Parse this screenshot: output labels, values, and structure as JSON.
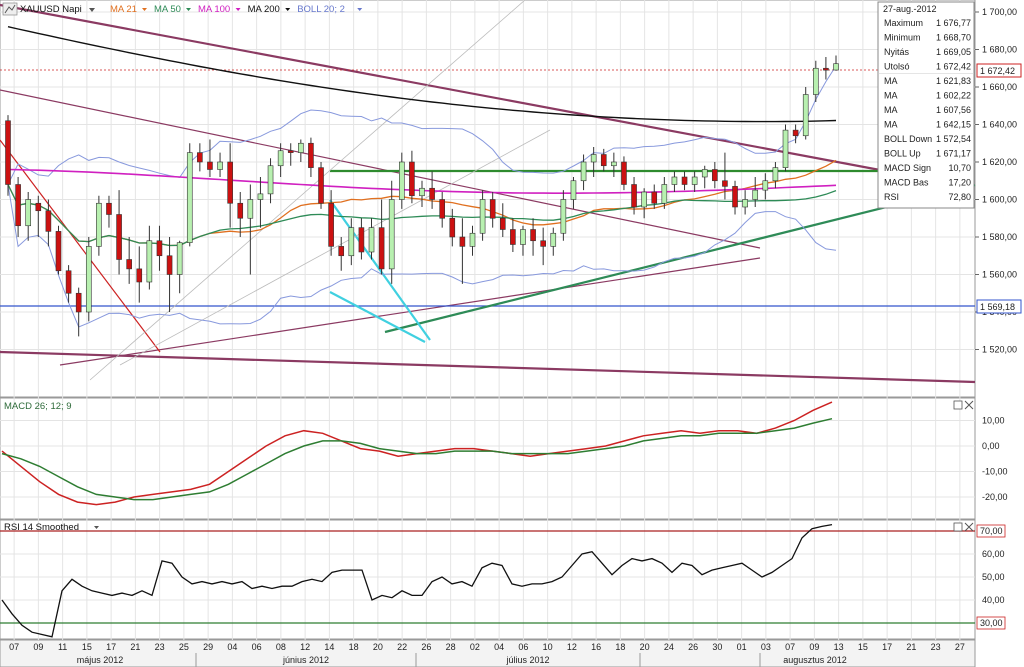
{
  "header": {
    "symbol": "XAUUSD Napi",
    "indicators": [
      {
        "label": "MA 21",
        "color": "#e07020"
      },
      {
        "label": "MA 50",
        "color": "#2e8b57"
      },
      {
        "label": "MA 100",
        "color": "#d020c0"
      },
      {
        "label": "MA 200",
        "color": "#111111"
      },
      {
        "label": "BOLL 20; 2",
        "color": "#6677cc"
      }
    ]
  },
  "info_panel": {
    "date": "27-aug.-2012",
    "rows": [
      {
        "label": "Maximum",
        "value": "1 676,77",
        "color": "#111111"
      },
      {
        "label": "Minimum",
        "value": "1 668,70",
        "color": "#111111"
      },
      {
        "label": "Nyitás",
        "value": "1 669,05",
        "color": "#111111"
      },
      {
        "label": "Utolsó",
        "value": "1 672,42",
        "color": "#cc2222"
      },
      {
        "label": "MA",
        "value": "1 621,83",
        "color": "#e07020"
      },
      {
        "label": "MA",
        "value": "1 602,22",
        "color": "#2e8b57"
      },
      {
        "label": "MA",
        "value": "1 607,56",
        "color": "#d020c0"
      },
      {
        "label": "MA",
        "value": "1 642,15",
        "color": "#111111"
      },
      {
        "label": "BOLL Down",
        "value": "1 572,54",
        "color": "#4466cc"
      },
      {
        "label": "BOLL Up",
        "value": "1 671,17",
        "color": "#4466cc"
      },
      {
        "label": "MACD Sign",
        "value": "10,70",
        "color": "#2e8b57"
      },
      {
        "label": "MACD Bas",
        "value": "17,20",
        "color": "#cc2222"
      },
      {
        "label": "RSI",
        "value": "72,80",
        "color": "#111111"
      }
    ]
  },
  "price_labels": {
    "last": "1 672,42",
    "support": "1 569,18"
  },
  "macd_label": "MACD 26; 12; 9",
  "rsi_label": "RSI 14 Smoothed",
  "chart_data": [
    {
      "type": "candlestick",
      "title": "XAUUSD Napi",
      "ylim": [
        1513,
        1705
      ],
      "y_ticks": [
        "1 700,00",
        "1 680,00",
        "1 660,00",
        "1 640,00",
        "1 620,00",
        "1 600,00",
        "1 580,00",
        "1 560,00",
        "1 540,00",
        "1 520,00"
      ],
      "y_tick_values": [
        1700,
        1680,
        1660,
        1640,
        1620,
        1600,
        1580,
        1560,
        1540,
        1520
      ],
      "x_ticks": [
        "07",
        "09",
        "11",
        "15",
        "17",
        "21",
        "23",
        "25",
        "29",
        "04",
        "06",
        "08",
        "12",
        "14",
        "18",
        "20",
        "22",
        "26",
        "28",
        "02",
        "04",
        "06",
        "10",
        "12",
        "16",
        "18",
        "20",
        "24",
        "26",
        "30",
        "01",
        "03",
        "07",
        "09",
        "13",
        "15",
        "17",
        "21",
        "23",
        "27"
      ],
      "month_labels": [
        "május 2012",
        "június 2012",
        "július 2012",
        "augusztus 2012"
      ],
      "candles": [
        {
          "o": 1642,
          "h": 1645,
          "l": 1602,
          "c": 1608
        },
        {
          "o": 1608,
          "h": 1612,
          "l": 1580,
          "c": 1586
        },
        {
          "o": 1586,
          "h": 1604,
          "l": 1578,
          "c": 1600
        },
        {
          "o": 1598,
          "h": 1602,
          "l": 1580,
          "c": 1594
        },
        {
          "o": 1594,
          "h": 1600,
          "l": 1575,
          "c": 1583
        },
        {
          "o": 1583,
          "h": 1586,
          "l": 1560,
          "c": 1562
        },
        {
          "o": 1562,
          "h": 1565,
          "l": 1545,
          "c": 1550
        },
        {
          "o": 1550,
          "h": 1553,
          "l": 1527,
          "c": 1540
        },
        {
          "o": 1540,
          "h": 1580,
          "l": 1535,
          "c": 1575
        },
        {
          "o": 1575,
          "h": 1602,
          "l": 1570,
          "c": 1598
        },
        {
          "o": 1598,
          "h": 1602,
          "l": 1585,
          "c": 1592
        },
        {
          "o": 1592,
          "h": 1605,
          "l": 1560,
          "c": 1568
        },
        {
          "o": 1568,
          "h": 1580,
          "l": 1555,
          "c": 1563
        },
        {
          "o": 1563,
          "h": 1575,
          "l": 1545,
          "c": 1556
        },
        {
          "o": 1556,
          "h": 1586,
          "l": 1552,
          "c": 1578
        },
        {
          "o": 1578,
          "h": 1586,
          "l": 1562,
          "c": 1570
        },
        {
          "o": 1570,
          "h": 1580,
          "l": 1540,
          "c": 1560
        },
        {
          "o": 1560,
          "h": 1578,
          "l": 1550,
          "c": 1577
        },
        {
          "o": 1577,
          "h": 1630,
          "l": 1575,
          "c": 1625
        },
        {
          "o": 1625,
          "h": 1630,
          "l": 1615,
          "c": 1620
        },
        {
          "o": 1620,
          "h": 1632,
          "l": 1612,
          "c": 1616
        },
        {
          "o": 1616,
          "h": 1625,
          "l": 1612,
          "c": 1620
        },
        {
          "o": 1620,
          "h": 1630,
          "l": 1585,
          "c": 1598
        },
        {
          "o": 1598,
          "h": 1604,
          "l": 1580,
          "c": 1590
        },
        {
          "o": 1590,
          "h": 1608,
          "l": 1560,
          "c": 1600
        },
        {
          "o": 1600,
          "h": 1612,
          "l": 1585,
          "c": 1603
        },
        {
          "o": 1603,
          "h": 1622,
          "l": 1598,
          "c": 1618
        },
        {
          "o": 1618,
          "h": 1630,
          "l": 1612,
          "c": 1626
        },
        {
          "o": 1626,
          "h": 1630,
          "l": 1618,
          "c": 1625
        },
        {
          "o": 1625,
          "h": 1632,
          "l": 1620,
          "c": 1630
        },
        {
          "o": 1630,
          "h": 1633,
          "l": 1612,
          "c": 1617
        },
        {
          "o": 1617,
          "h": 1620,
          "l": 1595,
          "c": 1598
        },
        {
          "o": 1598,
          "h": 1605,
          "l": 1570,
          "c": 1575
        },
        {
          "o": 1575,
          "h": 1580,
          "l": 1562,
          "c": 1570
        },
        {
          "o": 1570,
          "h": 1590,
          "l": 1565,
          "c": 1585
        },
        {
          "o": 1585,
          "h": 1590,
          "l": 1568,
          "c": 1572
        },
        {
          "o": 1572,
          "h": 1590,
          "l": 1568,
          "c": 1585
        },
        {
          "o": 1585,
          "h": 1600,
          "l": 1560,
          "c": 1563
        },
        {
          "o": 1563,
          "h": 1610,
          "l": 1555,
          "c": 1600
        },
        {
          "o": 1600,
          "h": 1625,
          "l": 1595,
          "c": 1620
        },
        {
          "o": 1620,
          "h": 1626,
          "l": 1598,
          "c": 1602
        },
        {
          "o": 1602,
          "h": 1610,
          "l": 1596,
          "c": 1606
        },
        {
          "o": 1606,
          "h": 1615,
          "l": 1595,
          "c": 1600
        },
        {
          "o": 1600,
          "h": 1604,
          "l": 1585,
          "c": 1590
        },
        {
          "o": 1590,
          "h": 1595,
          "l": 1575,
          "c": 1580
        },
        {
          "o": 1580,
          "h": 1590,
          "l": 1555,
          "c": 1575
        },
        {
          "o": 1575,
          "h": 1586,
          "l": 1570,
          "c": 1582
        },
        {
          "o": 1582,
          "h": 1605,
          "l": 1578,
          "c": 1600
        },
        {
          "o": 1600,
          "h": 1604,
          "l": 1585,
          "c": 1590
        },
        {
          "o": 1590,
          "h": 1598,
          "l": 1580,
          "c": 1584
        },
        {
          "o": 1584,
          "h": 1590,
          "l": 1572,
          "c": 1576
        },
        {
          "o": 1576,
          "h": 1586,
          "l": 1570,
          "c": 1584
        },
        {
          "o": 1584,
          "h": 1590,
          "l": 1570,
          "c": 1578
        },
        {
          "o": 1578,
          "h": 1585,
          "l": 1565,
          "c": 1575
        },
        {
          "o": 1575,
          "h": 1585,
          "l": 1570,
          "c": 1582
        },
        {
          "o": 1582,
          "h": 1605,
          "l": 1578,
          "c": 1600
        },
        {
          "o": 1600,
          "h": 1612,
          "l": 1595,
          "c": 1610
        },
        {
          "o": 1610,
          "h": 1624,
          "l": 1605,
          "c": 1620
        },
        {
          "o": 1620,
          "h": 1628,
          "l": 1612,
          "c": 1624
        },
        {
          "o": 1624,
          "h": 1627,
          "l": 1615,
          "c": 1618
        },
        {
          "o": 1618,
          "h": 1625,
          "l": 1612,
          "c": 1620
        },
        {
          "o": 1620,
          "h": 1623,
          "l": 1605,
          "c": 1608
        },
        {
          "o": 1608,
          "h": 1612,
          "l": 1592,
          "c": 1596
        },
        {
          "o": 1596,
          "h": 1606,
          "l": 1590,
          "c": 1604
        },
        {
          "o": 1604,
          "h": 1608,
          "l": 1595,
          "c": 1598
        },
        {
          "o": 1598,
          "h": 1612,
          "l": 1595,
          "c": 1608
        },
        {
          "o": 1608,
          "h": 1615,
          "l": 1604,
          "c": 1612
        },
        {
          "o": 1612,
          "h": 1615,
          "l": 1605,
          "c": 1608
        },
        {
          "o": 1608,
          "h": 1615,
          "l": 1604,
          "c": 1612
        },
        {
          "o": 1612,
          "h": 1618,
          "l": 1606,
          "c": 1616
        },
        {
          "o": 1616,
          "h": 1620,
          "l": 1606,
          "c": 1610
        },
        {
          "o": 1610,
          "h": 1625,
          "l": 1600,
          "c": 1607
        },
        {
          "o": 1607,
          "h": 1610,
          "l": 1592,
          "c": 1596
        },
        {
          "o": 1596,
          "h": 1605,
          "l": 1592,
          "c": 1600
        },
        {
          "o": 1600,
          "h": 1612,
          "l": 1596,
          "c": 1605
        },
        {
          "o": 1605,
          "h": 1614,
          "l": 1600,
          "c": 1610
        },
        {
          "o": 1610,
          "h": 1620,
          "l": 1606,
          "c": 1617
        },
        {
          "o": 1617,
          "h": 1640,
          "l": 1615,
          "c": 1637
        },
        {
          "o": 1637,
          "h": 1640,
          "l": 1630,
          "c": 1634
        },
        {
          "o": 1634,
          "h": 1660,
          "l": 1632,
          "c": 1656
        },
        {
          "o": 1656,
          "h": 1674,
          "l": 1652,
          "c": 1670
        },
        {
          "o": 1670,
          "h": 1676,
          "l": 1664,
          "c": 1669
        },
        {
          "o": 1669.05,
          "h": 1676.77,
          "l": 1668.7,
          "c": 1672.42
        }
      ]
    },
    {
      "type": "line",
      "title": "MACD 26; 12; 9",
      "ylim": [
        -28,
        18
      ],
      "y_ticks": [
        "10,00",
        "0,00",
        "-10,00",
        "-20,00"
      ],
      "y_tick_values": [
        10,
        0,
        -10,
        -20
      ],
      "series": [
        {
          "name": "MACD Bas",
          "values": [
            -2,
            -8,
            -14,
            -19,
            -22,
            -23,
            -22,
            -20,
            -19,
            -18,
            -17,
            -15,
            -10,
            -5,
            0,
            4,
            6,
            5,
            2,
            -1,
            -2,
            -4,
            -3,
            -2,
            -1,
            -1,
            -2,
            -3,
            -4,
            -3,
            -2,
            -1,
            0,
            2,
            4,
            5,
            6,
            5,
            6,
            6,
            5,
            7,
            10,
            14,
            17.2
          ]
        },
        {
          "name": "MACD Sign",
          "values": [
            -3,
            -5,
            -8,
            -12,
            -16,
            -19,
            -20,
            -21,
            -21,
            -20,
            -19,
            -18,
            -15,
            -11,
            -7,
            -3,
            0,
            2,
            2,
            1,
            -1,
            -2,
            -3,
            -3,
            -2,
            -2,
            -2,
            -3,
            -3,
            -3,
            -3,
            -2,
            -1,
            0,
            2,
            3,
            4,
            4,
            5,
            5,
            5,
            6,
            7,
            9,
            10.7
          ]
        }
      ]
    },
    {
      "type": "line",
      "title": "RSI 14 Smoothed",
      "ylim": [
        20,
        75
      ],
      "y_ticks": [
        "70,00",
        "60,00",
        "50,00",
        "40,00",
        "30,00"
      ],
      "y_tick_values": [
        70,
        60,
        50,
        40,
        30
      ],
      "levels": [
        70,
        30
      ],
      "series": [
        {
          "name": "RSI",
          "values": [
            40,
            34,
            29,
            26,
            25,
            24,
            44,
            49,
            46,
            44,
            43,
            42,
            43,
            42,
            44,
            42,
            57,
            56,
            50,
            47,
            48,
            47,
            48,
            47,
            48,
            45,
            46,
            45,
            46,
            46,
            48,
            49,
            48,
            52,
            53,
            53,
            53,
            40,
            42,
            41,
            44,
            42,
            42,
            48,
            50,
            47,
            48,
            46,
            54,
            56,
            55,
            47,
            46,
            47,
            47,
            48,
            50,
            55,
            60,
            61,
            56,
            51,
            55,
            58,
            57,
            58,
            56,
            52,
            56,
            55,
            51,
            53,
            54,
            55,
            56,
            53,
            50,
            52,
            55,
            58,
            67,
            71,
            72,
            72.8
          ]
        }
      ]
    }
  ]
}
